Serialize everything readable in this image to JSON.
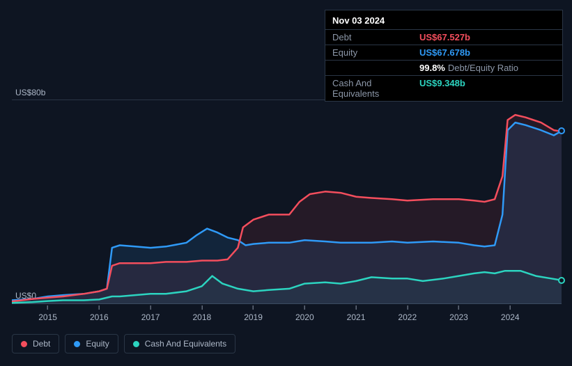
{
  "tooltip": {
    "date": "Nov 03 2024",
    "rows": [
      {
        "label": "Debt",
        "value": "US$67.527b",
        "color": "#f44e5d"
      },
      {
        "label": "Equity",
        "value": "US$67.678b",
        "color": "#2f9af7"
      },
      {
        "label": "",
        "value": "99.8%",
        "sub": "Debt/Equity Ratio",
        "color": "#ffffff"
      },
      {
        "label": "Cash And Equivalents",
        "value": "US$9.348b",
        "color": "#2cd4c0"
      }
    ]
  },
  "yaxis": {
    "top_label": "US$80b",
    "bottom_label": "US$0",
    "min": 0,
    "max": 80
  },
  "xaxis": {
    "ticks": [
      "2015",
      "2016",
      "2017",
      "2018",
      "2019",
      "2020",
      "2021",
      "2022",
      "2023",
      "2024"
    ]
  },
  "legend": [
    {
      "label": "Debt",
      "color": "#f44e5d"
    },
    {
      "label": "Equity",
      "color": "#2f9af7"
    },
    {
      "label": "Cash And Equivalents",
      "color": "#2cd4c0"
    }
  ],
  "chart": {
    "type": "area-line",
    "xrange": [
      2014.3,
      2025.0
    ],
    "series": {
      "debt": {
        "color": "#f44e5d",
        "fill": "rgba(244,78,93,0.10)",
        "points": [
          [
            2014.3,
            1
          ],
          [
            2014.7,
            2
          ],
          [
            2015.0,
            2.5
          ],
          [
            2015.3,
            3
          ],
          [
            2015.7,
            4
          ],
          [
            2016.0,
            5
          ],
          [
            2016.15,
            6
          ],
          [
            2016.25,
            15
          ],
          [
            2016.4,
            16
          ],
          [
            2016.7,
            16
          ],
          [
            2017.0,
            16
          ],
          [
            2017.3,
            16.5
          ],
          [
            2017.7,
            16.5
          ],
          [
            2018.0,
            17
          ],
          [
            2018.3,
            17
          ],
          [
            2018.5,
            17.5
          ],
          [
            2018.7,
            22
          ],
          [
            2018.8,
            30
          ],
          [
            2019.0,
            33
          ],
          [
            2019.3,
            35
          ],
          [
            2019.7,
            35
          ],
          [
            2019.9,
            40
          ],
          [
            2020.1,
            43
          ],
          [
            2020.4,
            44
          ],
          [
            2020.7,
            43.5
          ],
          [
            2021.0,
            42
          ],
          [
            2021.3,
            41.5
          ],
          [
            2021.7,
            41
          ],
          [
            2022.0,
            40.5
          ],
          [
            2022.5,
            41
          ],
          [
            2023.0,
            41
          ],
          [
            2023.3,
            40.5
          ],
          [
            2023.5,
            40
          ],
          [
            2023.7,
            41
          ],
          [
            2023.85,
            50
          ],
          [
            2023.95,
            72
          ],
          [
            2024.1,
            74
          ],
          [
            2024.3,
            73
          ],
          [
            2024.6,
            71
          ],
          [
            2024.85,
            68
          ],
          [
            2025.0,
            67.5
          ]
        ],
        "show_end_marker": false
      },
      "equity": {
        "color": "#2f9af7",
        "fill": "rgba(47,154,247,0.12)",
        "points": [
          [
            2014.3,
            1.5
          ],
          [
            2014.7,
            2
          ],
          [
            2015.0,
            3
          ],
          [
            2015.3,
            3.5
          ],
          [
            2015.7,
            4
          ],
          [
            2016.0,
            5
          ],
          [
            2016.15,
            6
          ],
          [
            2016.25,
            22
          ],
          [
            2016.4,
            23
          ],
          [
            2016.7,
            22.5
          ],
          [
            2017.0,
            22
          ],
          [
            2017.3,
            22.5
          ],
          [
            2017.7,
            24
          ],
          [
            2017.9,
            27
          ],
          [
            2018.1,
            29.5
          ],
          [
            2018.3,
            28
          ],
          [
            2018.5,
            26
          ],
          [
            2018.7,
            25
          ],
          [
            2018.85,
            23
          ],
          [
            2019.0,
            23.5
          ],
          [
            2019.3,
            24
          ],
          [
            2019.7,
            24
          ],
          [
            2020.0,
            25
          ],
          [
            2020.4,
            24.5
          ],
          [
            2020.7,
            24
          ],
          [
            2021.0,
            24
          ],
          [
            2021.3,
            24
          ],
          [
            2021.7,
            24.5
          ],
          [
            2022.0,
            24
          ],
          [
            2022.5,
            24.5
          ],
          [
            2023.0,
            24
          ],
          [
            2023.3,
            23
          ],
          [
            2023.5,
            22.5
          ],
          [
            2023.7,
            23
          ],
          [
            2023.85,
            35
          ],
          [
            2023.95,
            68
          ],
          [
            2024.1,
            71
          ],
          [
            2024.3,
            70
          ],
          [
            2024.6,
            68
          ],
          [
            2024.85,
            66
          ],
          [
            2025.0,
            67.7
          ]
        ],
        "show_end_marker": true
      },
      "cash": {
        "color": "#2cd4c0",
        "fill": "rgba(44,212,192,0.06)",
        "points": [
          [
            2014.3,
            0.5
          ],
          [
            2014.7,
            0.8
          ],
          [
            2015.0,
            1.2
          ],
          [
            2015.3,
            1.5
          ],
          [
            2015.7,
            1.5
          ],
          [
            2016.0,
            1.8
          ],
          [
            2016.25,
            3
          ],
          [
            2016.4,
            3
          ],
          [
            2016.7,
            3.5
          ],
          [
            2017.0,
            4
          ],
          [
            2017.3,
            4
          ],
          [
            2017.7,
            5
          ],
          [
            2018.0,
            7
          ],
          [
            2018.2,
            11
          ],
          [
            2018.4,
            8
          ],
          [
            2018.7,
            6
          ],
          [
            2019.0,
            5
          ],
          [
            2019.3,
            5.5
          ],
          [
            2019.7,
            6
          ],
          [
            2020.0,
            8
          ],
          [
            2020.4,
            8.5
          ],
          [
            2020.7,
            8
          ],
          [
            2021.0,
            9
          ],
          [
            2021.3,
            10.5
          ],
          [
            2021.7,
            10
          ],
          [
            2022.0,
            10
          ],
          [
            2022.3,
            9
          ],
          [
            2022.7,
            10
          ],
          [
            2023.0,
            11
          ],
          [
            2023.3,
            12
          ],
          [
            2023.5,
            12.5
          ],
          [
            2023.7,
            12
          ],
          [
            2023.9,
            13
          ],
          [
            2024.2,
            13
          ],
          [
            2024.5,
            11
          ],
          [
            2024.8,
            10
          ],
          [
            2025.0,
            9.3
          ]
        ],
        "show_end_marker": true
      }
    }
  },
  "style": {
    "bg": "#0e1522",
    "border": "#2a3646",
    "text_muted": "#8c97a8",
    "text": "#adb8c8",
    "line_width": 2.5,
    "tooltip_bg": "#000000"
  }
}
